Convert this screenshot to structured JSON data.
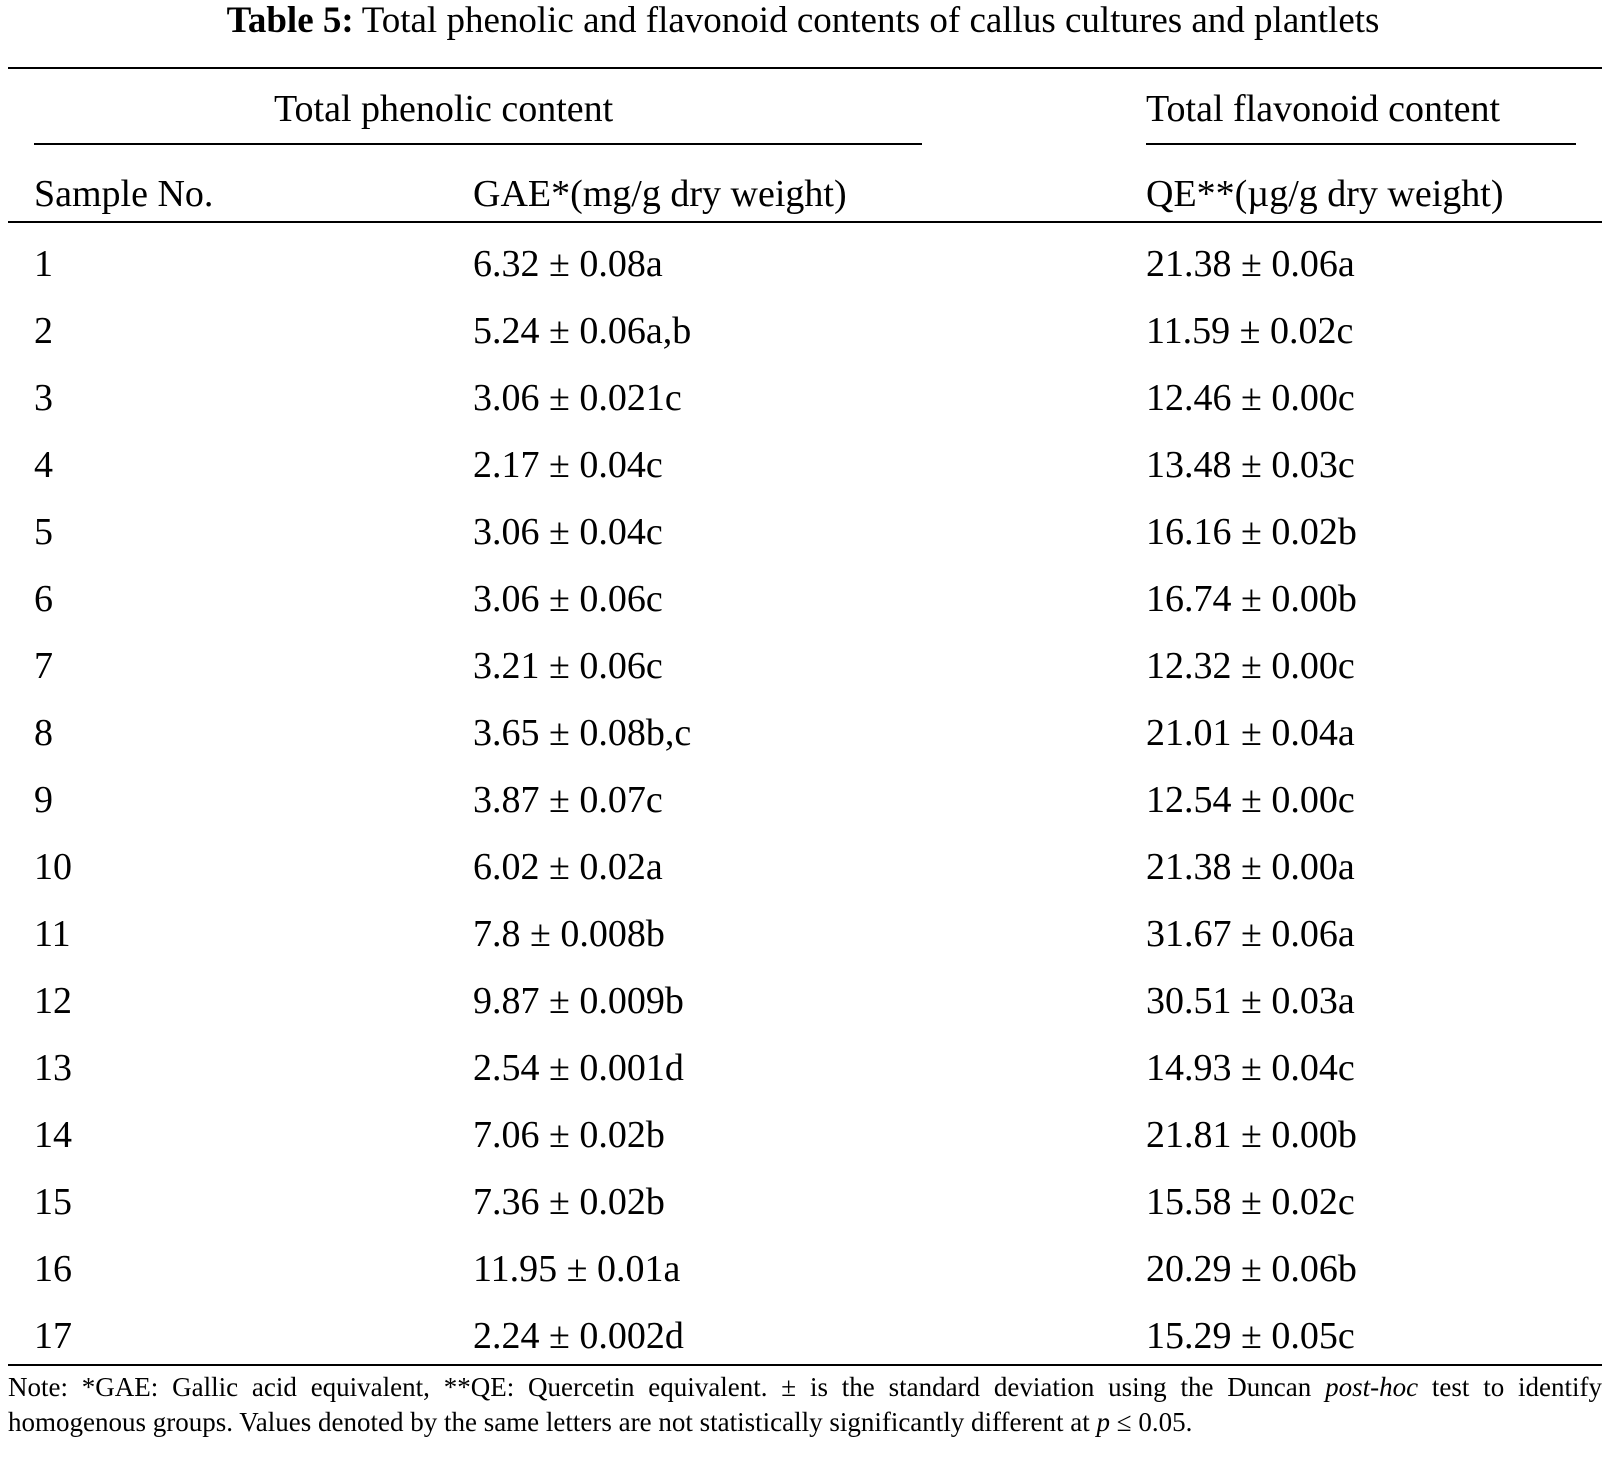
{
  "caption": {
    "label": "Table 5:",
    "text": "Total phenolic and flavonoid contents of callus cultures and plantlets"
  },
  "headers": {
    "group_phenolic": "Total phenolic content",
    "group_flavonoid": "Total flavonoid content",
    "col_sample": "Sample No.",
    "col_gae": "GAE*(mg/g dry weight)",
    "col_qe": "QE**(µg/g dry weight)"
  },
  "rows": [
    {
      "sample": "1",
      "gae": "6.32 ± 0.08a",
      "qe": "21.38 ± 0.06a"
    },
    {
      "sample": "2",
      "gae": "5.24 ± 0.06a,b",
      "qe": "11.59 ± 0.02c"
    },
    {
      "sample": "3",
      "gae": "3.06 ± 0.021c",
      "qe": "12.46 ± 0.00c"
    },
    {
      "sample": "4",
      "gae": "2.17 ± 0.04c",
      "qe": "13.48 ± 0.03c"
    },
    {
      "sample": "5",
      "gae": "3.06 ± 0.04c",
      "qe": "16.16 ± 0.02b"
    },
    {
      "sample": "6",
      "gae": "3.06 ± 0.06c",
      "qe": "16.74 ± 0.00b"
    },
    {
      "sample": "7",
      "gae": "3.21 ± 0.06c",
      "qe": "12.32 ± 0.00c"
    },
    {
      "sample": "8",
      "gae": "3.65 ± 0.08b,c",
      "qe": "21.01 ± 0.04a"
    },
    {
      "sample": "9",
      "gae": "3.87 ± 0.07c",
      "qe": "12.54 ± 0.00c"
    },
    {
      "sample": "10",
      "gae": "6.02 ± 0.02a",
      "qe": "21.38 ± 0.00a"
    },
    {
      "sample": "11",
      "gae": "7.8 ± 0.008b",
      "qe": "31.67 ± 0.06a"
    },
    {
      "sample": "12",
      "gae": "9.87 ± 0.009b",
      "qe": "30.51 ± 0.03a"
    },
    {
      "sample": "13",
      "gae": "2.54 ± 0.001d",
      "qe": "14.93 ± 0.04c"
    },
    {
      "sample": "14",
      "gae": "7.06 ± 0.02b",
      "qe": "21.81 ± 0.00b"
    },
    {
      "sample": "15",
      "gae": "7.36 ± 0.02b",
      "qe": "15.58 ± 0.02c"
    },
    {
      "sample": "16",
      "gae": "11.95 ± 0.01a",
      "qe": "20.29 ± 0.06b"
    },
    {
      "sample": "17",
      "gae": "2.24 ± 0.002d",
      "qe": "15.29 ± 0.05c"
    }
  ],
  "note": {
    "part1": "Note: *GAE: Gallic acid equivalent, **QE: Quercetin equivalent. ± is the standard deviation using the Duncan ",
    "italic1": "post-hoc",
    "part2": " test to identify homogenous groups. Values denoted by the same letters are not statistically significantly different at ",
    "italic2": "p",
    "part3": " ≤ 0.05."
  }
}
